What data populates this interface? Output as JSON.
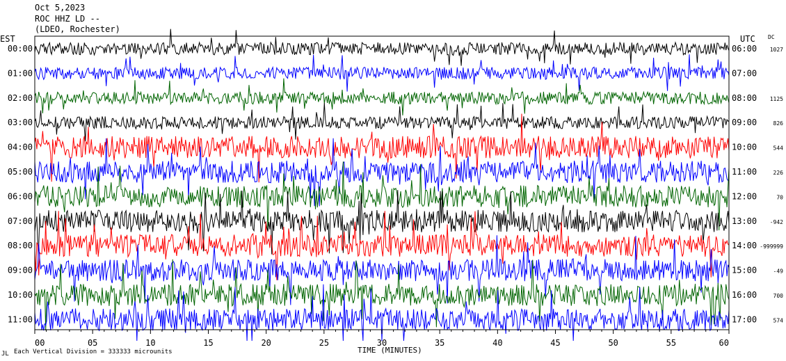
{
  "header": {
    "line1": "Oct 5,2023",
    "line2": "ROC HHZ LD --",
    "line3": "(LDEO, Rochester)"
  },
  "chart_data": {
    "type": "line",
    "left_timezone": "EST",
    "right_timezone": "UTC",
    "dc_heading": "DC",
    "xlabel": "TIME (MINUTES)",
    "footnote": "Each Vertical Division = 333333 microunits",
    "corner_mark": "JL",
    "xlim": [
      0,
      60
    ],
    "x_ticks": [
      "00",
      "05",
      "10",
      "15",
      "20",
      "25",
      "30",
      "35",
      "40",
      "45",
      "50",
      "55",
      "60"
    ],
    "traces": [
      {
        "est": "00:00",
        "utc": "06:00",
        "dc": "1027",
        "color": "#000000"
      },
      {
        "est": "01:00",
        "utc": "07:00",
        "dc": "",
        "color": "#0000ff"
      },
      {
        "est": "02:00",
        "utc": "08:00",
        "dc": "1125",
        "color": "#006400"
      },
      {
        "est": "03:00",
        "utc": "09:00",
        "dc": "826",
        "color": "#000000"
      },
      {
        "est": "04:00",
        "utc": "10:00",
        "dc": "544",
        "color": "#ff0000"
      },
      {
        "est": "05:00",
        "utc": "11:00",
        "dc": "226",
        "color": "#0000ff"
      },
      {
        "est": "06:00",
        "utc": "12:00",
        "dc": "70",
        "color": "#006400"
      },
      {
        "est": "07:00",
        "utc": "13:00",
        "dc": "-942",
        "color": "#000000"
      },
      {
        "est": "08:00",
        "utc": "14:00",
        "dc": "-999999",
        "color": "#ff0000"
      },
      {
        "est": "09:00",
        "utc": "15:00",
        "dc": "-49",
        "color": "#0000ff"
      },
      {
        "est": "10:00",
        "utc": "16:00",
        "dc": "700",
        "color": "#006400"
      },
      {
        "est": "11:00",
        "utc": "17:00",
        "dc": "574",
        "color": "#0000ff"
      }
    ]
  }
}
